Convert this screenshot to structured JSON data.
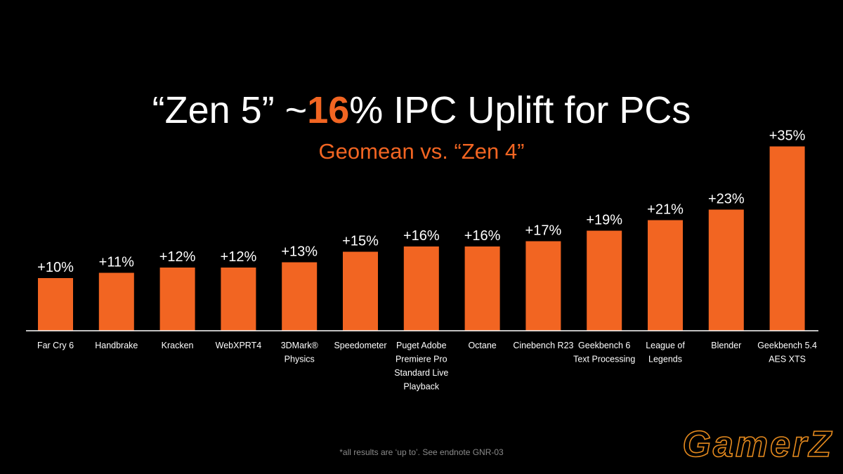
{
  "slide": {
    "title_before": "“Zen 5” ~",
    "title_highlight": "16",
    "title_after": "% IPC Uplift for PCs",
    "subtitle": "Geomean  vs. “Zen 4”",
    "footnote": "*all results are ‘up to’. See endnote GNR-03",
    "watermark": "GamerZ"
  },
  "colors": {
    "background": "#000000",
    "bar": "#f26522",
    "accent": "#f26522",
    "text": "#ffffff",
    "axis": "#ffffff",
    "footnote": "#8a8a8a",
    "watermark_outline": "#e58a1e"
  },
  "chart_data": {
    "type": "bar",
    "categories": [
      [
        "Far Cry 6"
      ],
      [
        "Handbrake"
      ],
      [
        "Kracken"
      ],
      [
        "WebXPRT4"
      ],
      [
        "3DMark®",
        "Physics"
      ],
      [
        "Speedometer"
      ],
      [
        "Puget Adobe",
        "Premiere Pro",
        "Standard Live",
        "Playback"
      ],
      [
        "Octane"
      ],
      [
        "Cinebench R23"
      ],
      [
        "Geekbench 6",
        "Text Processing"
      ],
      [
        "League of",
        "Legends"
      ],
      [
        "Blender"
      ],
      [
        "Geekbench 5.4",
        "AES XTS"
      ]
    ],
    "values": [
      10,
      11,
      12,
      12,
      13,
      15,
      16,
      16,
      17,
      19,
      21,
      23,
      35
    ],
    "data_labels": [
      "+10%",
      "+11%",
      "+12%",
      "+12%",
      "+13%",
      "+15%",
      "+16%",
      "+16%",
      "+17%",
      "+19%",
      "+21%",
      "+23%",
      "+35%"
    ],
    "unit": "%",
    "ylim": [
      0,
      35
    ],
    "grid": false,
    "legend": "none"
  }
}
